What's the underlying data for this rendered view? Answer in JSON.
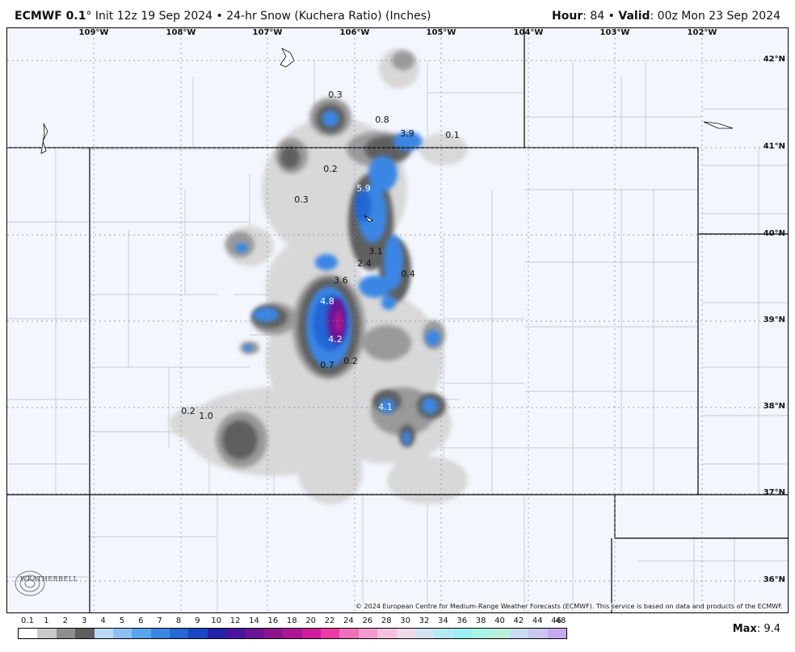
{
  "header": {
    "model": "ECMWF 0.1",
    "degree": "°",
    "init": " Init 12z 19 Sep 2024 • 24-hr Snow (Kuchera Ratio) (Inches)",
    "hour_label": "Hour",
    "hour_value": ": 84 • ",
    "valid_label": "Valid",
    "valid_value": ": 00z Mon 23 Sep 2024"
  },
  "map": {
    "lon_labels": [
      "109°W",
      "108°W",
      "107°W",
      "106°W",
      "105°W",
      "104°W",
      "103°W",
      "102°W"
    ],
    "lat_labels": [
      "42°N",
      "41°N",
      "40°N",
      "39°N",
      "38°N",
      "37°N",
      "36°N"
    ],
    "value_labels": [
      {
        "text": "0.3",
        "color": "#111"
      },
      {
        "text": "0.8",
        "color": "#111"
      },
      {
        "text": "3.9",
        "color": "#111"
      },
      {
        "text": "0.1",
        "color": "#111"
      },
      {
        "text": "0.2",
        "color": "#111"
      },
      {
        "text": "5.9",
        "color": "#ffffff"
      },
      {
        "text": "0.3",
        "color": "#111"
      },
      {
        "text": "3.1",
        "color": "#111"
      },
      {
        "text": "2.4",
        "color": "#111"
      },
      {
        "text": "0.4",
        "color": "#111"
      },
      {
        "text": "3.6",
        "color": "#111"
      },
      {
        "text": "4.8",
        "color": "#ffffff"
      },
      {
        "text": "4.2",
        "color": "#ffffff"
      },
      {
        "text": "0.7",
        "color": "#111"
      },
      {
        "text": "0.2",
        "color": "#111"
      },
      {
        "text": "4.1",
        "color": "#ffffff"
      },
      {
        "text": "0.2",
        "color": "#111"
      },
      {
        "text": "1.0",
        "color": "#111"
      }
    ],
    "copyright": "© 2024 European Centre for Medium-Range Weather Forecasts (ECMWF). This service is based on data and products of the ECMWF.",
    "logo": "WEATHERBELL"
  },
  "legend": {
    "ticks": [
      "0.1",
      "1",
      "2",
      "3",
      "4",
      "5",
      "6",
      "7",
      "8",
      "9",
      "10",
      "12",
      "14",
      "16",
      "18",
      "20",
      "22",
      "24",
      "26",
      "28",
      "30",
      "32",
      "34",
      "36",
      "38",
      "40",
      "42",
      "44",
      "46",
      "48"
    ],
    "colors": [
      "#ffffff",
      "#c9c9c9",
      "#8e8e8e",
      "#5e5e5e",
      "#bcd7f7",
      "#8cc0f5",
      "#5aa4ee",
      "#3a86e4",
      "#2466d4",
      "#1a48c2",
      "#2222aa",
      "#4a14a0",
      "#6b1396",
      "#8c148e",
      "#ad1692",
      "#d11c9c",
      "#ed3aa7",
      "#f06fbb",
      "#f39ccd",
      "#f4c2df",
      "#eed9ea",
      "#d3e3f0",
      "#b5e9f1",
      "#98eef2",
      "#a7f4e7",
      "#b8f0db",
      "#c6dcf2",
      "#c9c7f3",
      "#c7a8f0",
      "#c38aec"
    ]
  },
  "max": {
    "label": "Max",
    "value": ": 9.4"
  }
}
